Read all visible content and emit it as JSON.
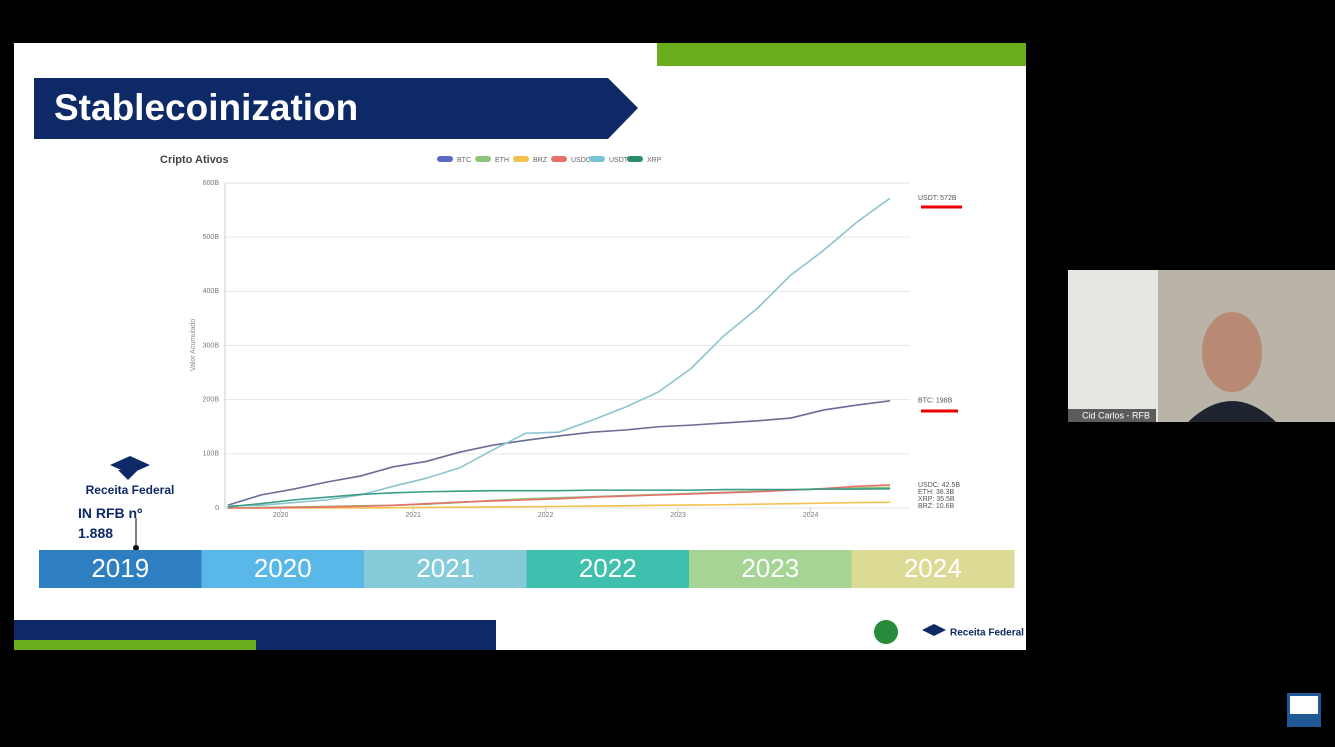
{
  "slide": {
    "title": "Stablecoinization",
    "note": "IN RFB nº 1.888",
    "logo_text": "Receita Federal",
    "timeline": [
      {
        "label": "2019",
        "color": "#2e7fc2"
      },
      {
        "label": "2020",
        "color": "#5ab8e8"
      },
      {
        "label": "2021",
        "color": "#86cbd9"
      },
      {
        "label": "2022",
        "color": "#3fbfae"
      },
      {
        "label": "2023",
        "color": "#a6d494"
      },
      {
        "label": "2024",
        "color": "#dcdb95"
      }
    ]
  },
  "video": {
    "participant": "Cid Carlos - RFB"
  },
  "chart_data": {
    "type": "line",
    "title": "Cripto Ativos",
    "y_label": "Valor Acumulado",
    "legend": "top",
    "grid": true,
    "x": [
      2019.6,
      2019.85,
      2020.1,
      2020.35,
      2020.6,
      2020.85,
      2021.1,
      2021.35,
      2021.6,
      2021.85,
      2022.1,
      2022.35,
      2022.6,
      2022.85,
      2023.1,
      2023.35,
      2023.6,
      2023.85,
      2024.1,
      2024.35,
      2024.6
    ],
    "xlim": [
      2019.58,
      2024.75
    ],
    "xticks": [
      2020,
      2021,
      2022,
      2023,
      2024
    ],
    "ylim": [
      0,
      600
    ],
    "yticks": [
      0,
      {
        "value": 100,
        "label": "100B"
      },
      {
        "value": 200,
        "label": "200B"
      },
      {
        "value": 300,
        "label": "300B"
      },
      {
        "value": 400,
        "label": "400B"
      },
      {
        "value": 500,
        "label": "500B"
      },
      {
        "value": 600,
        "label": "600B"
      }
    ],
    "series": [
      {
        "name": "BTC",
        "color": "#6a6d94",
        "legend_color": "#5b6abf",
        "end_label": "BTC: 198B",
        "values": [
          5,
          24,
          35,
          48,
          59,
          76,
          86,
          103,
          116,
          125,
          133,
          140,
          144,
          150,
          153,
          157,
          161,
          166,
          181,
          190,
          198
        ]
      },
      {
        "name": "ETH",
        "color": "#8fc27a",
        "end_label": "ETH: 38.3B",
        "values": [
          0,
          1,
          2,
          3,
          4,
          5,
          7,
          10,
          14,
          17,
          19,
          21,
          23,
          25,
          27,
          29,
          31,
          33,
          35,
          37,
          38.3
        ]
      },
      {
        "name": "BRZ",
        "color": "#f2c14e",
        "end_label": "BRZ: 10.6B",
        "values": [
          0,
          0,
          0,
          0,
          0,
          0.5,
          1,
          1.5,
          2,
          2.5,
          3,
          3.5,
          4,
          5,
          5.5,
          6,
          7,
          8,
          9,
          10,
          10.6
        ]
      },
      {
        "name": "USDC",
        "color": "#e8706b",
        "end_label": "USDC: 42.5B",
        "values": [
          0,
          0,
          1,
          2,
          3,
          5,
          8,
          11,
          13,
          15,
          17,
          20,
          22,
          24,
          26,
          28,
          30,
          33,
          36,
          40,
          42.5
        ]
      },
      {
        "name": "USDT",
        "color": "#8cc4cf",
        "legend_color": "#7ac3d6",
        "end_label": "USDT: 572B",
        "values": [
          4,
          5,
          10,
          15,
          24,
          40,
          55,
          74,
          107,
          138,
          140,
          162,
          186,
          214,
          258,
          319,
          369,
          430,
          476,
          528,
          572
        ]
      },
      {
        "name": "XRP",
        "color": "#3a9c84",
        "legend_color": "#2e8b6e",
        "end_label": "XRP: 35.5B",
        "values": [
          2,
          8,
          15,
          20,
          25,
          28,
          30,
          31,
          32,
          32,
          32,
          33,
          33,
          33,
          33,
          34,
          34,
          34,
          35,
          35,
          35.5
        ]
      }
    ]
  }
}
